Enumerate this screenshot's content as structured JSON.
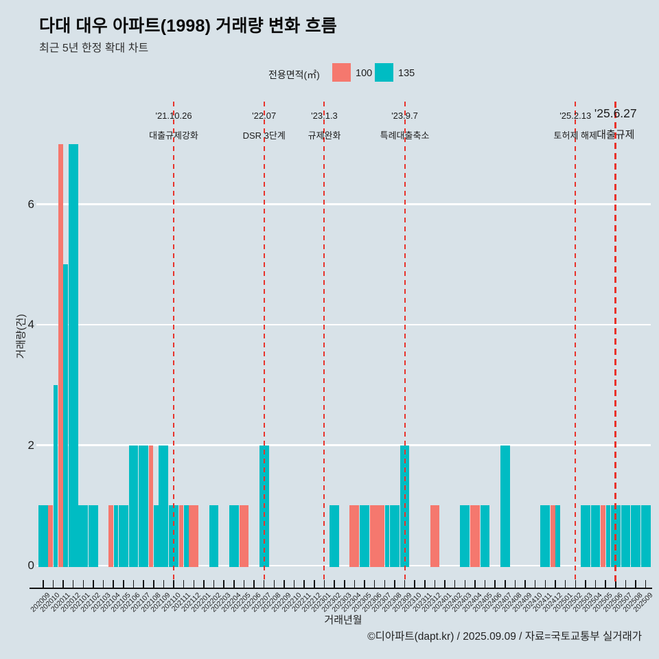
{
  "page": {
    "background": "#d8e2e8"
  },
  "header": {
    "title": "다대 대우 아파트(1998) 거래량 변화 흐름",
    "subtitle": "최근 5년 한정 확대 차트"
  },
  "legend": {
    "label": "전용면적(㎡)",
    "items": [
      {
        "name": "100",
        "color": "#f5786e"
      },
      {
        "name": "135",
        "color": "#00bcc3"
      }
    ]
  },
  "annotations": [
    {
      "date": "'21.10.26",
      "label": "대출규제강화",
      "month": "202110",
      "emphasized": false
    },
    {
      "date": "'22.07",
      "label": "DSR 3단계",
      "month": "202207",
      "emphasized": false
    },
    {
      "date": "'23.1.3",
      "label": "규제완화",
      "month": "202301",
      "emphasized": false
    },
    {
      "date": "'23.9.7",
      "label": "특례대출축소",
      "month": "202309",
      "emphasized": false
    },
    {
      "date": "'25.2.13",
      "label": "토허제 해제",
      "month": "202502",
      "emphasized": false
    },
    {
      "date": "'25.6.27",
      "label": "대출규제",
      "month": "202506",
      "emphasized": true
    }
  ],
  "chart_data": {
    "type": "bar",
    "title": "다대 대우 아파트(1998) 거래량 변화 흐름",
    "subtitle": "최근 5년 한정 확대 차트",
    "xlabel": "거래년월",
    "ylabel": "거래량(건)",
    "yticks": [
      0,
      2,
      4,
      6
    ],
    "ylim": [
      0,
      7.5
    ],
    "grid": true,
    "legend_position": "top",
    "annotation_line_color": "#e8332b",
    "categories": [
      "202009",
      "202010",
      "202011",
      "202012",
      "202101",
      "202102",
      "202103",
      "202104",
      "202105",
      "202106",
      "202107",
      "202108",
      "202109",
      "202110",
      "202111",
      "202112",
      "202201",
      "202202",
      "202203",
      "202204",
      "202205",
      "202206",
      "202207",
      "202208",
      "202209",
      "202210",
      "202211",
      "202212",
      "202301",
      "202302",
      "202303",
      "202304",
      "202305",
      "202306",
      "202307",
      "202308",
      "202309",
      "202310",
      "202311",
      "202312",
      "202401",
      "202402",
      "202403",
      "202404",
      "202405",
      "202406",
      "202407",
      "202408",
      "202409",
      "202410",
      "202411",
      "202412",
      "202501",
      "202502",
      "202503",
      "202504",
      "202505",
      "202506",
      "202507",
      "202508",
      "202509"
    ],
    "series": [
      {
        "name": "100",
        "color": "#f5786e",
        "values": [
          0,
          1,
          7,
          0,
          0,
          0,
          0,
          1,
          0,
          0,
          0,
          2,
          0,
          0,
          1,
          1,
          0,
          0,
          0,
          0,
          1,
          0,
          0,
          0,
          0,
          0,
          0,
          0,
          0,
          0,
          0,
          1,
          0,
          1,
          1,
          0,
          0,
          0,
          0,
          1,
          0,
          0,
          0,
          1,
          0,
          0,
          0,
          0,
          0,
          0,
          0,
          1,
          0,
          0,
          0,
          0,
          1,
          0,
          0,
          0,
          0
        ]
      },
      {
        "name": "135",
        "color": "#00bcc3",
        "values": [
          1,
          3,
          5,
          7,
          1,
          1,
          0,
          1,
          1,
          2,
          2,
          1,
          2,
          1,
          1,
          0,
          0,
          1,
          0,
          1,
          0,
          0,
          2,
          0,
          0,
          0,
          0,
          0,
          0,
          1,
          0,
          0,
          1,
          0,
          1,
          1,
          2,
          0,
          0,
          0,
          0,
          0,
          1,
          0,
          1,
          0,
          2,
          0,
          0,
          0,
          1,
          1,
          0,
          0,
          1,
          1,
          1,
          1,
          1,
          1,
          1
        ]
      }
    ]
  },
  "footer": {
    "credit": "©디아파트(dapt.kr) / 2025.09.09 / 자료=국토교통부 실거래가"
  }
}
